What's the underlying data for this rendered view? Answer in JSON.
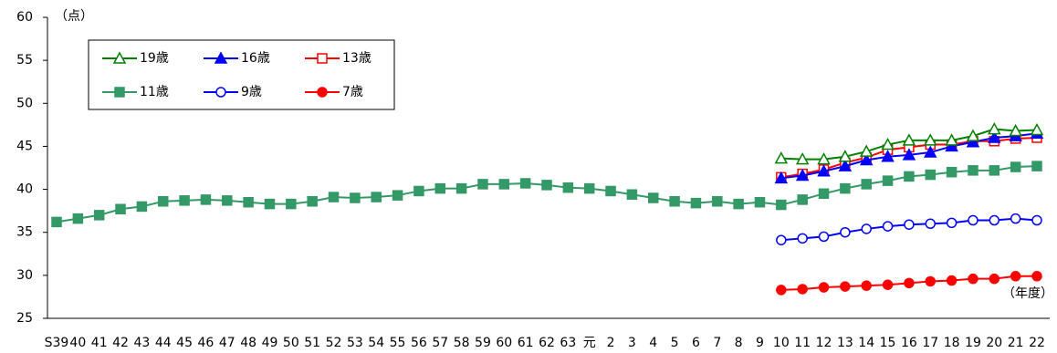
{
  "chart_data": {
    "type": "line",
    "y_label": "（点）",
    "x_label": "（年度）",
    "categories": [
      "S39",
      "40",
      "41",
      "42",
      "43",
      "44",
      "45",
      "46",
      "47",
      "48",
      "49",
      "50",
      "51",
      "52",
      "53",
      "54",
      "55",
      "56",
      "57",
      "58",
      "59",
      "60",
      "61",
      "62",
      "63",
      "元",
      "2",
      "3",
      "4",
      "5",
      "6",
      "7",
      "8",
      "9",
      "10",
      "11",
      "12",
      "13",
      "14",
      "15",
      "16",
      "17",
      "18",
      "19",
      "20",
      "21",
      "22"
    ],
    "ylim": [
      25,
      60
    ],
    "yticks": [
      25,
      30,
      35,
      40,
      45,
      50,
      55,
      60
    ],
    "grid": false,
    "legend": "upper left",
    "series": [
      {
        "name": "19歳",
        "color": "#008000",
        "marker": "triangle",
        "filled": false,
        "values": [
          null,
          null,
          null,
          null,
          null,
          null,
          null,
          null,
          null,
          null,
          null,
          null,
          null,
          null,
          null,
          null,
          null,
          null,
          null,
          null,
          null,
          null,
          null,
          null,
          null,
          null,
          null,
          null,
          null,
          null,
          null,
          null,
          null,
          null,
          43.6,
          43.5,
          43.5,
          43.8,
          44.4,
          45.2,
          45.7,
          45.7,
          45.7,
          46.2,
          47.0,
          46.8,
          46.9
        ]
      },
      {
        "name": "16歳",
        "color": "#0000ff",
        "marker": "triangle",
        "filled": true,
        "values": [
          null,
          null,
          null,
          null,
          null,
          null,
          null,
          null,
          null,
          null,
          null,
          null,
          null,
          null,
          null,
          null,
          null,
          null,
          null,
          null,
          null,
          null,
          null,
          null,
          null,
          null,
          null,
          null,
          null,
          null,
          null,
          null,
          null,
          null,
          41.3,
          41.6,
          42.1,
          42.7,
          43.4,
          43.8,
          44.0,
          44.3,
          45.0,
          45.5,
          46.0,
          46.2,
          46.5
        ]
      },
      {
        "name": "13歳",
        "color": "#ff0000",
        "marker": "square",
        "filled": false,
        "values": [
          null,
          null,
          null,
          null,
          null,
          null,
          null,
          null,
          null,
          null,
          null,
          null,
          null,
          null,
          null,
          null,
          null,
          null,
          null,
          null,
          null,
          null,
          null,
          null,
          null,
          null,
          null,
          null,
          null,
          null,
          null,
          null,
          null,
          null,
          41.4,
          41.8,
          42.3,
          43.1,
          43.7,
          44.6,
          44.9,
          45.2,
          45.2,
          45.6,
          45.6,
          45.9,
          46.0
        ]
      },
      {
        "name": "11歳",
        "color": "#339966",
        "marker": "square",
        "filled": true,
        "values": [
          36.2,
          36.6,
          37.0,
          37.7,
          38.0,
          38.6,
          38.7,
          38.8,
          38.7,
          38.5,
          38.3,
          38.3,
          38.6,
          39.1,
          39.0,
          39.1,
          39.3,
          39.8,
          40.1,
          40.1,
          40.6,
          40.6,
          40.7,
          40.5,
          40.2,
          40.1,
          39.8,
          39.4,
          39.0,
          38.6,
          38.4,
          38.6,
          38.3,
          38.5,
          38.2,
          38.8,
          39.5,
          40.1,
          40.6,
          41.0,
          41.5,
          41.7,
          42.0,
          42.2,
          42.2,
          42.6,
          42.7
        ]
      },
      {
        "name": "9歳",
        "color": "#0000ff",
        "marker": "circle",
        "filled": false,
        "values": [
          null,
          null,
          null,
          null,
          null,
          null,
          null,
          null,
          null,
          null,
          null,
          null,
          null,
          null,
          null,
          null,
          null,
          null,
          null,
          null,
          null,
          null,
          null,
          null,
          null,
          null,
          null,
          null,
          null,
          null,
          null,
          null,
          null,
          null,
          34.1,
          34.3,
          34.5,
          35.0,
          35.4,
          35.7,
          35.9,
          36.0,
          36.1,
          36.4,
          36.4,
          36.6,
          36.4
        ]
      },
      {
        "name": "7歳",
        "color": "#ff0000",
        "marker": "circle",
        "filled": true,
        "values": [
          null,
          null,
          null,
          null,
          null,
          null,
          null,
          null,
          null,
          null,
          null,
          null,
          null,
          null,
          null,
          null,
          null,
          null,
          null,
          null,
          null,
          null,
          null,
          null,
          null,
          null,
          null,
          null,
          null,
          null,
          null,
          null,
          null,
          null,
          28.3,
          28.4,
          28.6,
          28.7,
          28.8,
          28.9,
          29.1,
          29.3,
          29.4,
          29.6,
          29.6,
          29.9,
          29.9
        ]
      }
    ]
  }
}
